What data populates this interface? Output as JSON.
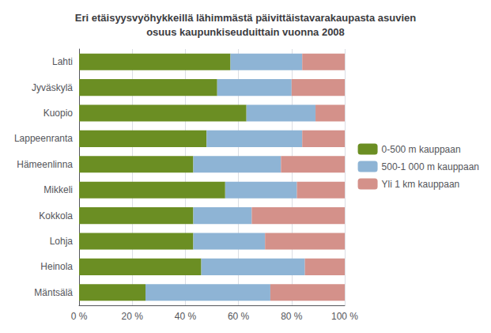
{
  "chart_data": {
    "type": "bar",
    "orientation": "horizontal",
    "stacked": true,
    "title": "Eri etäisyysvyöhykkeillä lähimmästä päivittäistavarakaupasta asuvien\nosuus kaupunkiseuduittain vuonna 2008",
    "categories": [
      "Lahti",
      "Jyväskylä",
      "Kuopio",
      "Lappeenranta",
      "Hämeenlinna",
      "Mikkeli",
      "Kokkola",
      "Lohja",
      "Heinola",
      "Mäntsälä"
    ],
    "series": [
      {
        "name": "0-500 m kauppaan",
        "color": "#6B8E23",
        "values": [
          57,
          52,
          63,
          48,
          43,
          55,
          43,
          43,
          46,
          25
        ]
      },
      {
        "name": "500-1 000 m kauppaan",
        "color": "#8EB4D5",
        "values": [
          27,
          28,
          26,
          36,
          33,
          27,
          22,
          27,
          39,
          47
        ]
      },
      {
        "name": "Yli 1 km kauppaan",
        "color": "#D4918A",
        "values": [
          16,
          20,
          11,
          16,
          24,
          18,
          35,
          30,
          15,
          28
        ]
      }
    ],
    "xlim": [
      0,
      100
    ],
    "xticks": [
      {
        "value": 0,
        "label": "0 %"
      },
      {
        "value": 20,
        "label": "20 %"
      },
      {
        "value": 40,
        "label": "40 %"
      },
      {
        "value": 60,
        "label": "60 %"
      },
      {
        "value": 80,
        "label": "80 %"
      },
      {
        "value": 100,
        "label": "100 %"
      }
    ],
    "grid": true,
    "legend": "right"
  }
}
